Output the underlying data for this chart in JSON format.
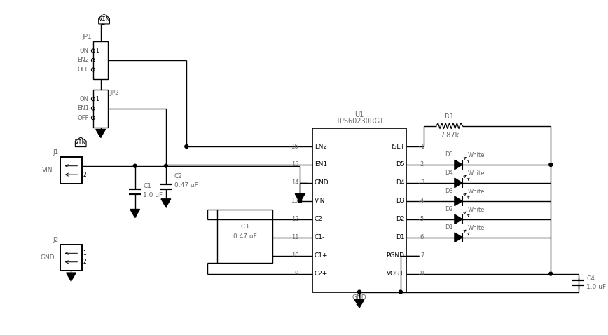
{
  "bg_color": "#ffffff",
  "line_color": "#000000",
  "text_color": "#666666",
  "ic_left_pins": [
    "EN2",
    "EN1",
    "GND",
    "VIN",
    "C2-",
    "C1-",
    "C1+",
    "C2+"
  ],
  "ic_left_nums": [
    16,
    15,
    14,
    13,
    12,
    11,
    10,
    9
  ],
  "ic_right_pins": [
    "ISET",
    "D5",
    "D4",
    "D3",
    "D2",
    "D1",
    "PGND",
    "VOUT"
  ],
  "ic_right_nums": [
    1,
    2,
    3,
    4,
    5,
    6,
    7,
    8
  ],
  "ic_name": "TPS60230RGT",
  "ic_label": "U1",
  "r1_label": "R1",
  "r1_value": "7.87k",
  "c1_label": "C1",
  "c1_value": "1.0 uF",
  "c2_label": "C2",
  "c2_value": "0.47 uF",
  "c3_label": "C3",
  "c3_value": "0.47 uF",
  "c4_label": "C4",
  "c4_value": "1.0 uF",
  "led_names": [
    "D5",
    "D4",
    "D3",
    "D2",
    "D1"
  ],
  "led_labels": [
    "White",
    "White",
    "White",
    "White",
    "White"
  ],
  "jp1_label": "JP1",
  "jp2_label": "JP2",
  "j1_label": "J1",
  "j2_label": "J2",
  "vin_label": "VIN",
  "gnd_label": "GND",
  "on_label": "ON",
  "en2_label": "EN2",
  "en1_label": "EN1",
  "off_label": "OFF"
}
